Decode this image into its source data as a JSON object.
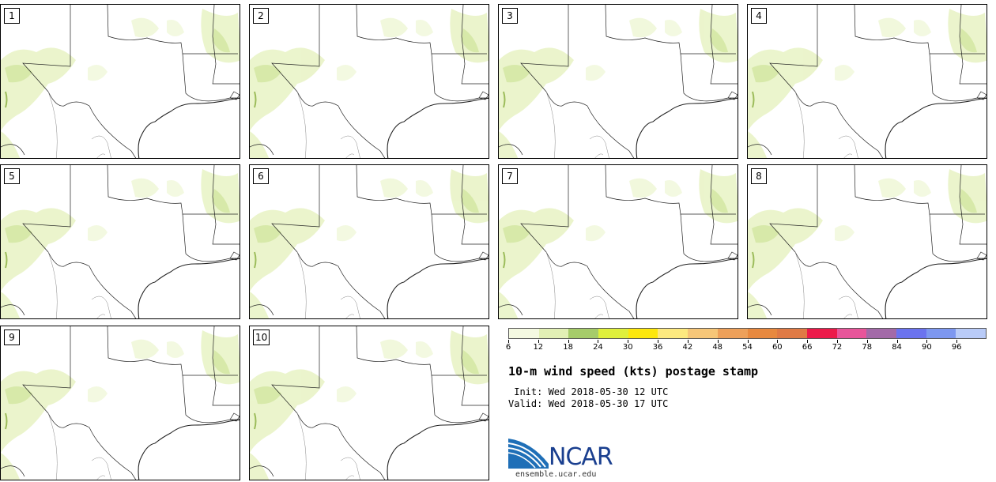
{
  "panels": [
    {
      "label": "1"
    },
    {
      "label": "2"
    },
    {
      "label": "3"
    },
    {
      "label": "4"
    },
    {
      "label": "5"
    },
    {
      "label": "6"
    },
    {
      "label": "7"
    },
    {
      "label": "8"
    },
    {
      "label": "9"
    },
    {
      "label": "10"
    }
  ],
  "legend": {
    "tick_labels": [
      "6",
      "12",
      "18",
      "24",
      "30",
      "36",
      "42",
      "48",
      "54",
      "60",
      "66",
      "72",
      "78",
      "84",
      "90",
      "96"
    ],
    "colors": [
      "#f4f9e1",
      "#e2f0b5",
      "#a6cc6a",
      "#dff03c",
      "#fde80d",
      "#fde97f",
      "#f6c678",
      "#eda05a",
      "#e8893f",
      "#e07a45",
      "#ec1a4a",
      "#e8559a",
      "#a36aa8",
      "#6b73ef",
      "#7d97f0",
      "#b9cbf8"
    ]
  },
  "title": "10-m wind speed (kts) postage stamp",
  "init_line": " Init: Wed 2018-05-30 12 UTC",
  "valid_line": "Valid: Wed 2018-05-30 17 UTC",
  "logo": {
    "text": "NCAR",
    "url": "ensemble.ucar.edu"
  }
}
